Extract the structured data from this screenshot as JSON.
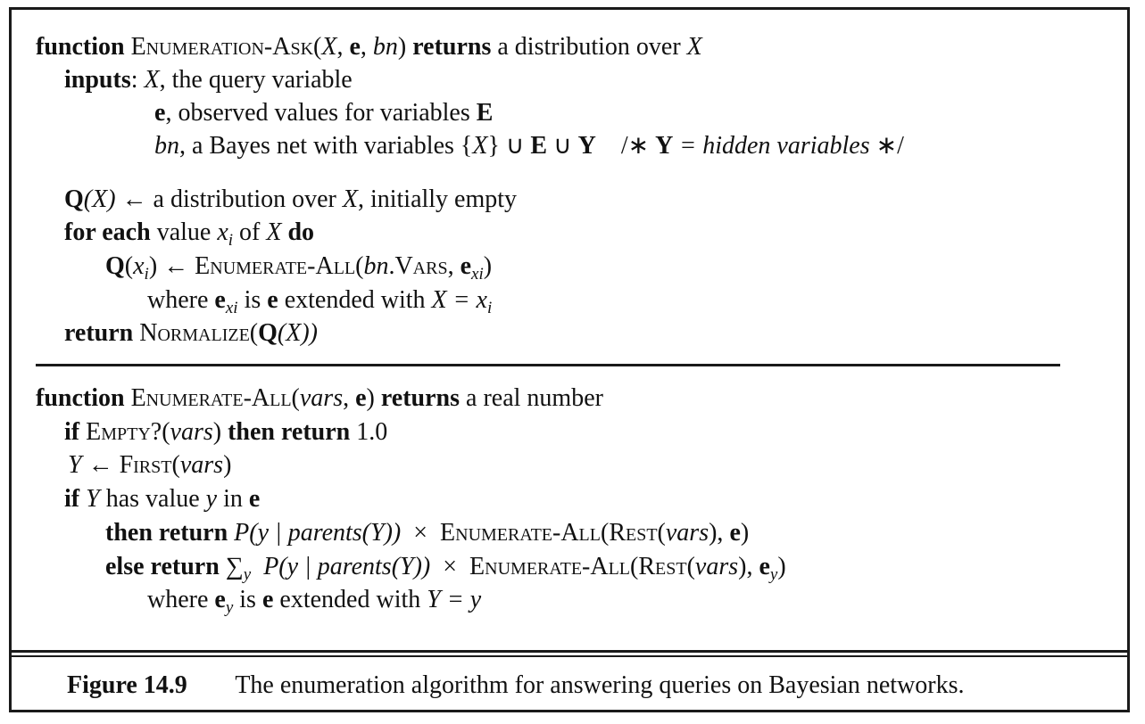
{
  "figure": {
    "label": "Figure 14.9",
    "caption": "The enumeration algorithm for answering queries on Bayesian networks."
  },
  "algo1": {
    "l1_kw": "function",
    "l1_name": "Enumeration-Ask",
    "l1_args_open": "(",
    "l1_X": "X",
    "l1_comma1": ", ",
    "l1_e": "e",
    "l1_comma2": ", ",
    "l1_bn": "bn",
    "l1_args_close": ")",
    "l1_returns": "returns",
    "l1_rest": " a distribution over ",
    "l1_X2": "X",
    "l2_kw": "inputs",
    "l2_colon": ": ",
    "l2_X": "X",
    "l2_rest": ",  the query variable",
    "l3_e": "e",
    "l3_rest": ", observed values for variables ",
    "l3_E": "E",
    "l4_bn": "bn",
    "l4_rest": ", a Bayes net with variables {",
    "l4_X": "X",
    "l4_union1": "} ∪ ",
    "l4_E": "E",
    "l4_union2": " ∪ ",
    "l4_Y": "Y",
    "l4_comment_open": "    /∗ ",
    "l4_Y2": "Y",
    "l4_comment_text": " = hidden variables",
    "l4_comment_close": " ∗/",
    "l5_Q": "Q",
    "l5_X": "(X)",
    "l5_rest": " ← a distribution over ",
    "l5_X2": "X",
    "l5_rest2": ", initially empty",
    "l6_kw": "for each",
    "l6_mid": " value ",
    "l6_x": "x",
    "l6_i": "i",
    "l6_of": " of ",
    "l6_X": "X",
    "l6_do": " do",
    "l7_Q": "Q",
    "l7_open": "(",
    "l7_x": "x",
    "l7_i": "i",
    "l7_close": ") ← ",
    "l7_name": "Enumerate-All",
    "l7_open2": "(",
    "l7_bn": "bn",
    "l7_vars": ".Vars",
    "l7_comma": ", ",
    "l7_e": "e",
    "l7_xi": "xi",
    "l7_close2": ")",
    "l8_where": "where ",
    "l8_e": "e",
    "l8_xi": "xi",
    "l8_is": " is ",
    "l8_e2": "e",
    "l8_rest": " extended with ",
    "l8_eq": "X = x",
    "l8_i": "i",
    "l9_kw": "return",
    "l9_name": " Normalize",
    "l9_open": "(",
    "l9_Q": "Q",
    "l9_rest": "(X))"
  },
  "algo2": {
    "l1_kw": "function",
    "l1_name": "Enumerate-All",
    "l1_open": "(",
    "l1_vars": "vars",
    "l1_comma": ", ",
    "l1_e": "e",
    "l1_close": ")",
    "l1_returns": " returns",
    "l1_rest": " a real number",
    "l2_if": "if",
    "l2_name": " Empty?",
    "l2_open": "(",
    "l2_vars": "vars",
    "l2_close": ")",
    "l2_then": " then return",
    "l2_val": " 1.0",
    "l3_Y": "Y",
    "l3_arrow": " ← ",
    "l3_name": "First",
    "l3_open": "(",
    "l3_vars": "vars",
    "l3_close": ")",
    "l4_if": "if",
    "l4_Y": " Y",
    "l4_mid": " has value ",
    "l4_y": "y",
    "l4_in": " in ",
    "l4_e": "e",
    "l5_then": "then return",
    "l5_P": " P(y | parents(Y))",
    "l5_times": "  ×  ",
    "l5_name": "Enumerate-All",
    "l5_open": "(",
    "l5_rest": "Rest",
    "l5_open2": "(",
    "l5_vars": "vars",
    "l5_close": "), ",
    "l5_e": "e",
    "l5_close2": ")",
    "l6_else": "else return",
    "l6_sum": " ∑",
    "l6_y": "y",
    "l6_P": "  P(y | parents(Y))",
    "l6_times": "  ×  ",
    "l6_name": "Enumerate-All",
    "l6_open": "(",
    "l6_rest": "Rest",
    "l6_open2": "(",
    "l6_vars": "vars",
    "l6_close": "), ",
    "l6_e": "e",
    "l6_ey": "y",
    "l6_close2": ")",
    "l7_where": "where ",
    "l7_e": "e",
    "l7_y": "y",
    "l7_is": " is ",
    "l7_e2": "e",
    "l7_rest": " extended with ",
    "l7_eq": "Y = y"
  }
}
